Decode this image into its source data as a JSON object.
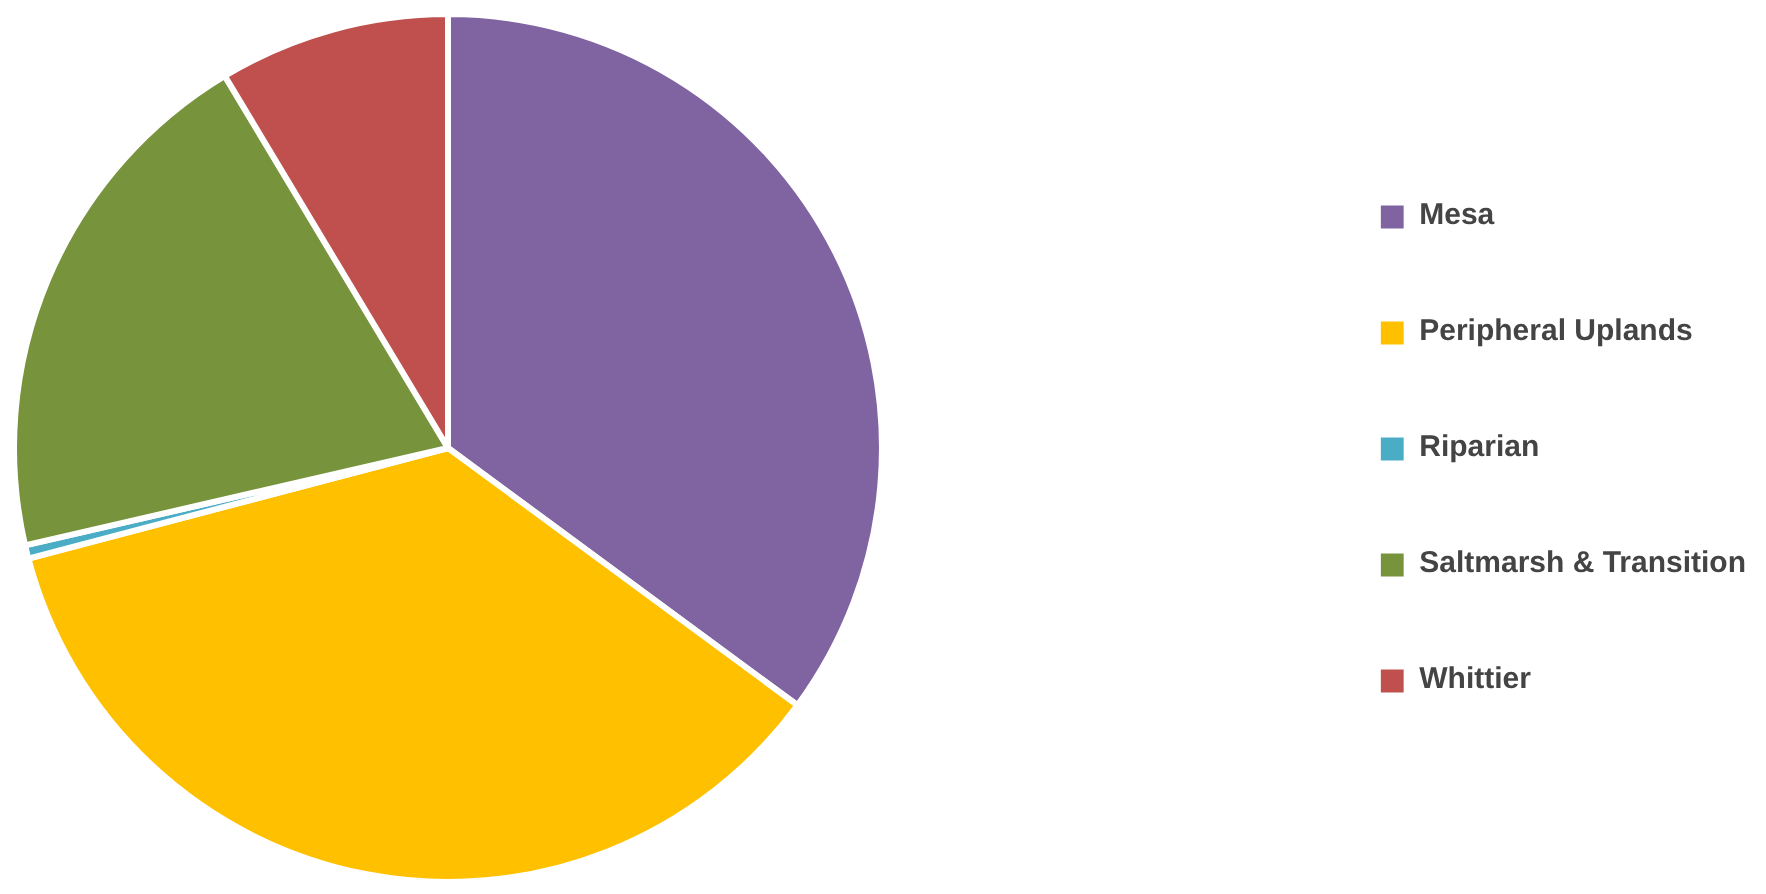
{
  "chart_data": {
    "type": "pie",
    "categories": [
      "Mesa",
      "Peripheral Uplands",
      "Riparian",
      "Saltmarsh & Transition",
      "Whittier"
    ],
    "values": [
      35.1,
      35.8,
      0.5,
      20,
      8.6
    ],
    "colors": [
      "#8064a2",
      "#ffc000",
      "#4bacc6",
      "#77933c",
      "#c0504d"
    ],
    "legend": "right"
  }
}
